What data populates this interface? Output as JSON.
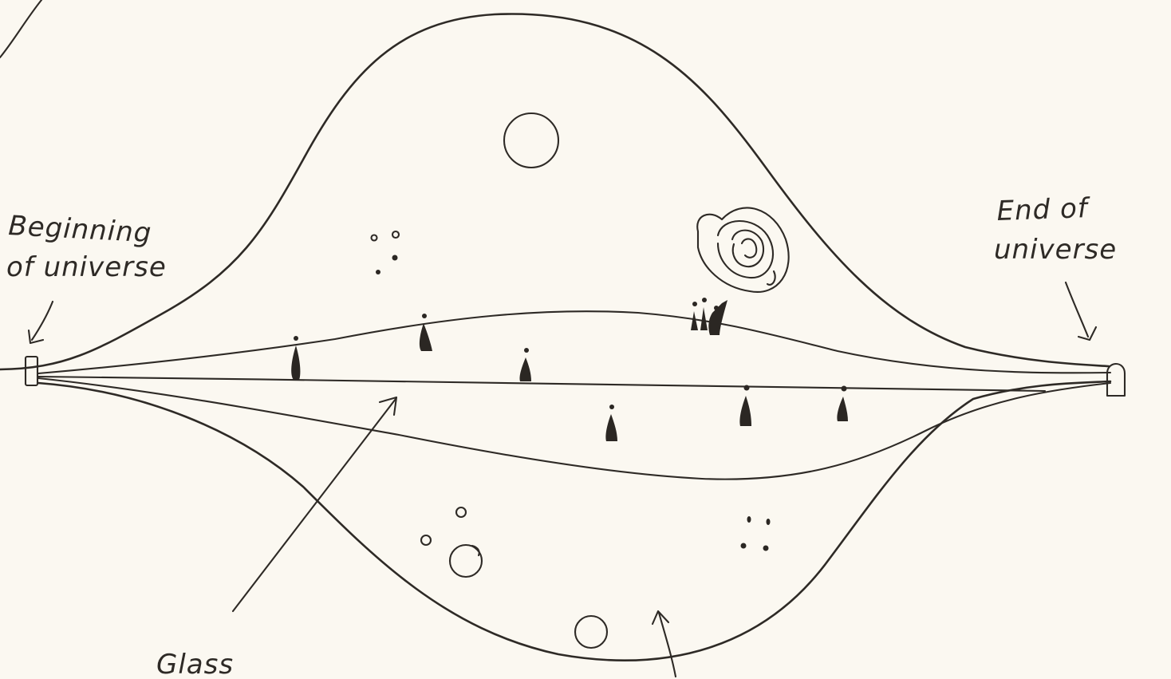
{
  "labels": {
    "beginning_line1": "Beginning",
    "beginning_line2": "of universe",
    "end_line1": "End of",
    "end_line2": "universe",
    "glass": "Glass"
  }
}
